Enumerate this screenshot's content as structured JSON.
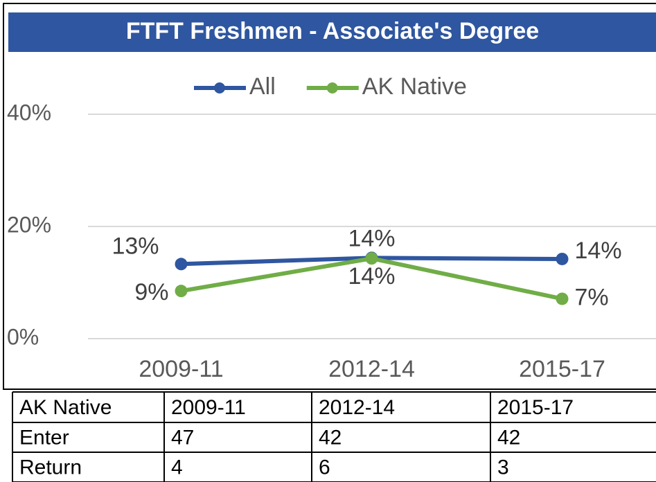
{
  "chart_data": {
    "type": "line",
    "title": "FTFT Freshmen - Associate's Degree",
    "categories": [
      "2009-11",
      "2012-14",
      "2015-17"
    ],
    "series": [
      {
        "name": "All",
        "color": "#2f56a0",
        "values": [
          13.3,
          14.4,
          14.2
        ],
        "value_labels": [
          "13%",
          "14%",
          "14%"
        ]
      },
      {
        "name": "AK Native",
        "color": "#70ad47",
        "values": [
          8.5,
          14.3,
          7.1
        ],
        "value_labels": [
          "9%",
          "14%",
          "7%"
        ]
      }
    ],
    "ylim": [
      0,
      40
    ],
    "yticks": [
      {
        "value": 0,
        "label": "0%"
      },
      {
        "value": 20,
        "label": "20%"
      },
      {
        "value": 40,
        "label": "40%"
      }
    ],
    "grid": true,
    "legend": "top"
  },
  "table": {
    "rows": [
      [
        "AK Native",
        "2009-11",
        "2012-14",
        "2015-17"
      ],
      [
        "Enter",
        "47",
        "42",
        "42"
      ],
      [
        "Return",
        "4",
        "6",
        "3"
      ]
    ]
  }
}
